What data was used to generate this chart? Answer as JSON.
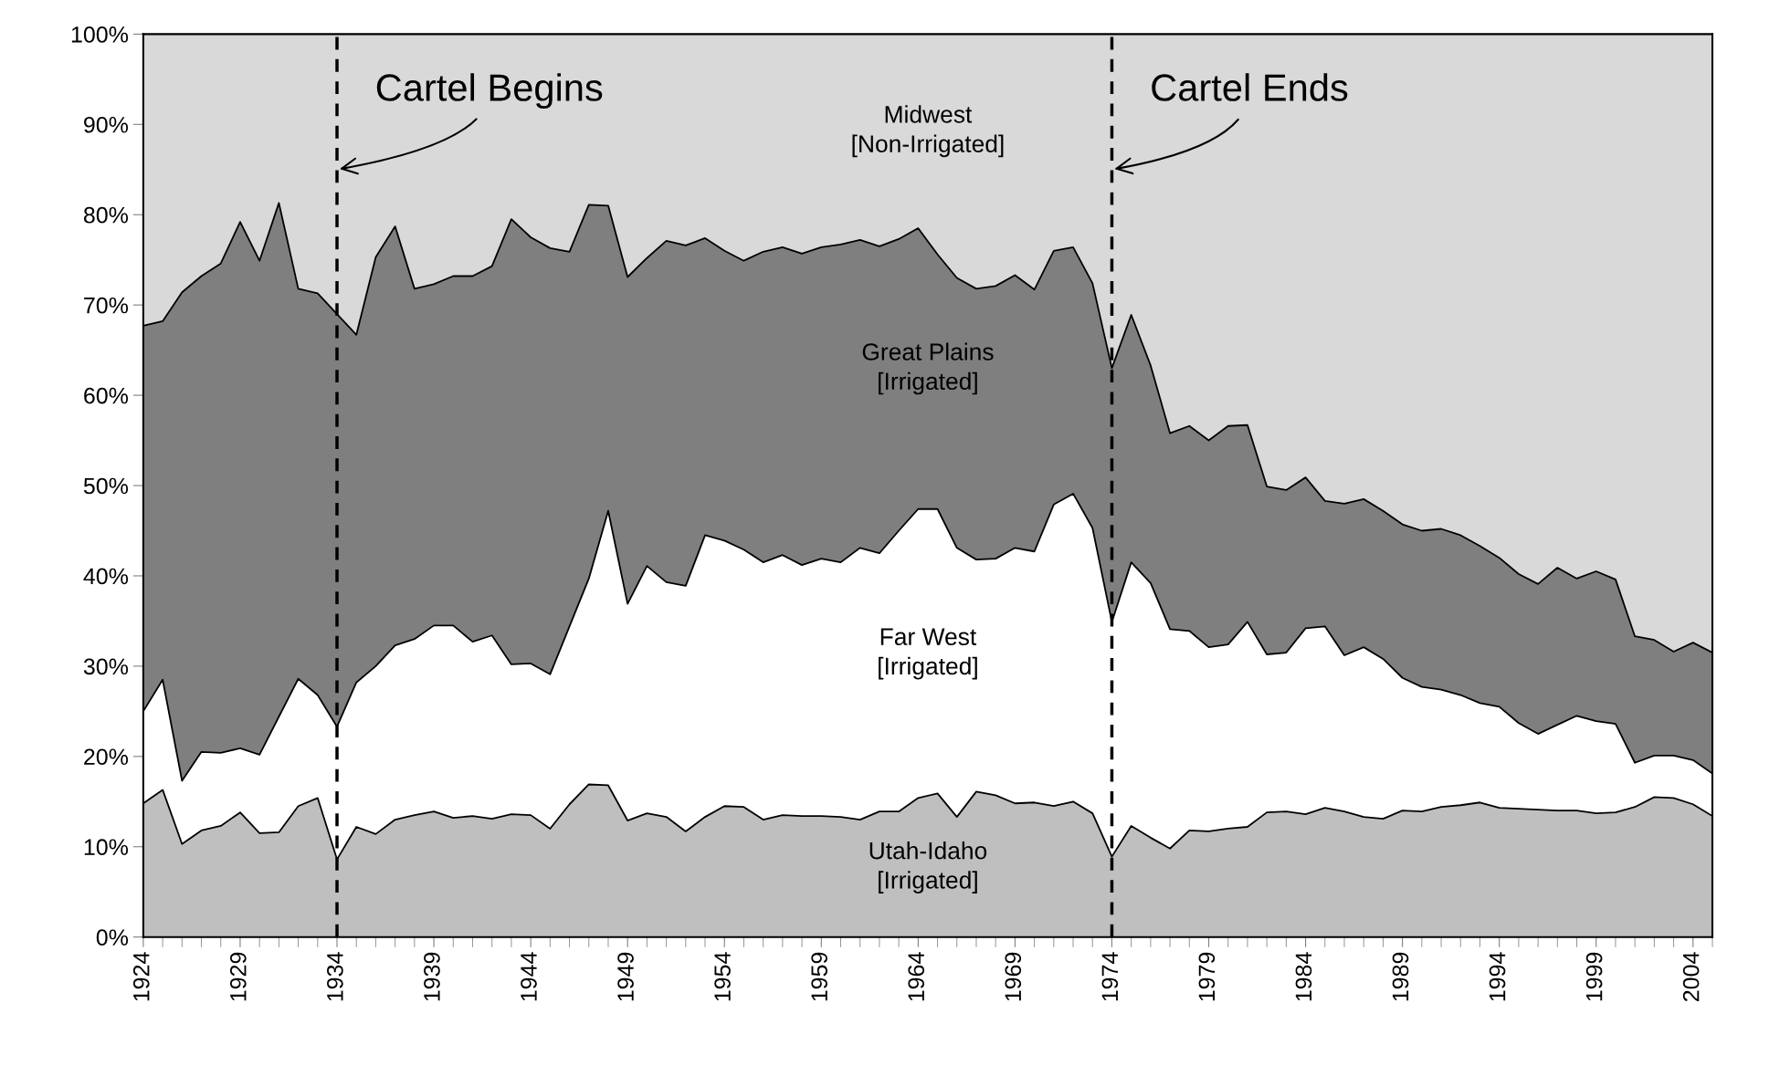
{
  "chart_data": {
    "type": "area",
    "stacked": true,
    "x": [
      1924,
      1925,
      1926,
      1927,
      1928,
      1929,
      1930,
      1931,
      1932,
      1933,
      1934,
      1935,
      1936,
      1937,
      1938,
      1939,
      1940,
      1941,
      1942,
      1943,
      1944,
      1945,
      1946,
      1947,
      1948,
      1949,
      1950,
      1951,
      1952,
      1953,
      1954,
      1955,
      1956,
      1957,
      1958,
      1959,
      1960,
      1961,
      1962,
      1963,
      1964,
      1965,
      1966,
      1967,
      1968,
      1969,
      1970,
      1971,
      1972,
      1973,
      1974,
      1975,
      1976,
      1977,
      1978,
      1979,
      1980,
      1981,
      1982,
      1983,
      1984,
      1985,
      1986,
      1987,
      1988,
      1989,
      1990,
      1991,
      1992,
      1993,
      1994,
      1995,
      1996,
      1997,
      1998,
      1999,
      2000,
      2001,
      2002,
      2003,
      2004,
      2005
    ],
    "series": [
      {
        "name": "Utah-Idaho\n[Irrigated]",
        "color": "#bfbfbf",
        "values": [
          14.8,
          16.3,
          10.3,
          11.8,
          12.3,
          13.8,
          11.5,
          11.6,
          14.5,
          15.4,
          8.6,
          12.2,
          11.4,
          13.0,
          13.5,
          13.9,
          13.2,
          13.4,
          13.1,
          13.6,
          13.5,
          12.0,
          14.7,
          16.9,
          16.8,
          12.9,
          13.7,
          13.3,
          11.7,
          13.3,
          14.5,
          14.4,
          13.0,
          13.5,
          13.4,
          13.4,
          13.3,
          13.0,
          13.9,
          13.9,
          15.4,
          15.9,
          13.3,
          16.1,
          15.7,
          14.8,
          14.9,
          14.5,
          15.0,
          13.7,
          8.9,
          12.3,
          11.0,
          9.8,
          11.8,
          11.7,
          12.0,
          12.2,
          13.8,
          13.9,
          13.6,
          14.3,
          13.9,
          13.3,
          13.1,
          14.0,
          13.9,
          14.4,
          14.6,
          14.9,
          14.3,
          14.2,
          14.1,
          14.0,
          14.0,
          13.7,
          13.8,
          14.4,
          15.5,
          15.4,
          14.7,
          13.4
        ]
      },
      {
        "name": "Far West\n[Irrigated]",
        "color": "#ffffff",
        "values": [
          10.2,
          12.2,
          7.0,
          8.7,
          8.1,
          7.1,
          8.7,
          12.8,
          14.1,
          11.4,
          14.7,
          16.0,
          18.6,
          19.3,
          19.5,
          20.6,
          21.3,
          19.3,
          20.3,
          16.6,
          16.8,
          17.1,
          19.7,
          22.8,
          30.4,
          24.0,
          27.4,
          26.0,
          27.2,
          31.2,
          29.4,
          28.5,
          28.5,
          28.8,
          27.8,
          28.5,
          28.2,
          30.1,
          28.6,
          31.1,
          32.0,
          31.5,
          29.8,
          25.7,
          26.2,
          28.3,
          27.8,
          33.4,
          34.1,
          31.6,
          26.0,
          29.2,
          28.2,
          24.3,
          22.1,
          20.4,
          20.4,
          22.7,
          17.5,
          17.6,
          20.6,
          20.1,
          17.3,
          18.8,
          17.7,
          14.7,
          13.8,
          13.0,
          12.2,
          11.0,
          11.2,
          9.5,
          8.4,
          9.5,
          10.5,
          10.2,
          9.8,
          4.9,
          4.6,
          4.7,
          4.9,
          4.7
        ]
      },
      {
        "name": "Great Plains\n[Irrigated]",
        "color": "#7f7f7f",
        "values": [
          42.7,
          39.7,
          54.1,
          52.7,
          54.2,
          58.3,
          54.7,
          56.9,
          43.2,
          44.5,
          45.7,
          38.5,
          45.3,
          46.4,
          38.8,
          37.8,
          38.7,
          40.5,
          40.9,
          49.3,
          47.2,
          47.2,
          41.5,
          41.4,
          33.8,
          36.2,
          34.1,
          37.8,
          37.7,
          32.9,
          32.1,
          32.0,
          34.4,
          34.1,
          34.5,
          34.5,
          35.2,
          34.1,
          34.0,
          32.3,
          31.1,
          28.2,
          29.9,
          30.0,
          30.2,
          30.2,
          29.0,
          28.1,
          27.3,
          27.1,
          28.1,
          27.4,
          24.1,
          21.7,
          22.7,
          22.9,
          24.2,
          21.8,
          18.6,
          18.0,
          16.7,
          13.9,
          16.8,
          16.4,
          16.4,
          17.0,
          17.3,
          17.8,
          17.7,
          17.4,
          16.5,
          16.5,
          16.6,
          17.4,
          15.2,
          16.6,
          16.0,
          14.0,
          12.8,
          11.5,
          13.0,
          13.4
        ]
      },
      {
        "name": "Midwest\n[Non-Irrigated]",
        "color": "#d9d9d9",
        "values": [
          32.3,
          31.8,
          28.6,
          26.8,
          25.4,
          20.8,
          25.1,
          18.7,
          28.2,
          28.7,
          31.0,
          33.3,
          24.7,
          21.3,
          28.2,
          27.7,
          26.8,
          26.8,
          25.7,
          20.5,
          22.5,
          23.7,
          24.1,
          18.9,
          19.0,
          26.9,
          24.8,
          22.9,
          23.4,
          22.6,
          24.0,
          25.1,
          24.1,
          23.6,
          24.3,
          23.6,
          23.3,
          22.8,
          23.5,
          22.7,
          21.5,
          24.4,
          27.0,
          28.2,
          27.9,
          26.7,
          28.3,
          24.0,
          23.6,
          27.6,
          37.0,
          31.1,
          36.7,
          44.2,
          43.4,
          45.0,
          43.4,
          43.3,
          50.1,
          50.5,
          49.1,
          51.7,
          52.0,
          51.5,
          52.8,
          54.3,
          55.0,
          54.8,
          55.5,
          56.7,
          58.0,
          59.8,
          60.9,
          59.1,
          60.3,
          59.5,
          60.4,
          66.7,
          67.1,
          68.4,
          67.4,
          68.5
        ]
      }
    ],
    "xlim": [
      1924,
      2005
    ],
    "xticks": [
      1924,
      1929,
      1934,
      1939,
      1944,
      1949,
      1954,
      1959,
      1964,
      1969,
      1974,
      1979,
      1984,
      1989,
      1994,
      1999,
      2004
    ],
    "ylim": [
      0,
      100
    ],
    "yticks": [
      {
        "value": 0,
        "label": "0%"
      },
      {
        "value": 10,
        "label": "10%"
      },
      {
        "value": 20,
        "label": "20%"
      },
      {
        "value": 30,
        "label": "30%"
      },
      {
        "value": 40,
        "label": "40%"
      },
      {
        "value": 50,
        "label": "50%"
      },
      {
        "value": 60,
        "label": "60%"
      },
      {
        "value": 70,
        "label": "70%"
      },
      {
        "value": 80,
        "label": "80%"
      },
      {
        "value": 90,
        "label": "90%"
      },
      {
        "value": 100,
        "label": "100%"
      }
    ],
    "ref_lines": [
      {
        "axis": "x",
        "value": 1934,
        "label": "Cartel Begins",
        "color": "#000000",
        "line_style": "dashed"
      },
      {
        "axis": "x",
        "value": 1974,
        "label": "Cartel Ends",
        "color": "#000000",
        "line_style": "dashed"
      }
    ],
    "grid": false,
    "legend": false
  }
}
